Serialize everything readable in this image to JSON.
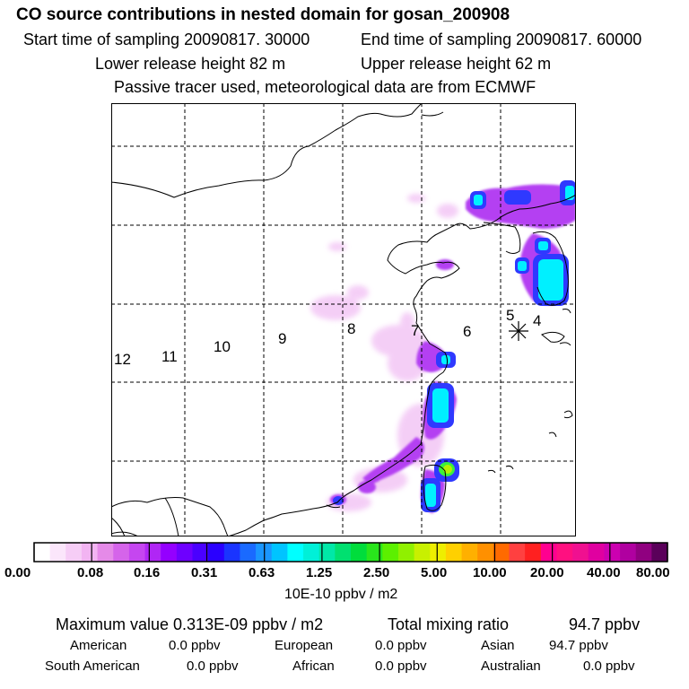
{
  "header": {
    "title": "CO  source contributions in nested domain for gosan_200908",
    "start_time": "Start time of sampling 20090817. 30000",
    "end_time": "End time of sampling 20090817. 60000",
    "lower_height": "Lower release height   82 m",
    "upper_height": "Upper release height   62 m",
    "note": "Passive tracer used, meteorological data are from ECMWF"
  },
  "map": {
    "contour_labels": [
      "12",
      "11",
      "10",
      "9",
      "8",
      "7",
      "6",
      "5",
      "4"
    ],
    "receptor_marker": "receptor-star"
  },
  "colorbar": {
    "tick_labels": [
      "0.00",
      "0.08",
      "0.16",
      "0.31",
      "0.63",
      "1.25",
      "2.50",
      "5.00",
      "10.00",
      "20.00",
      "40.00",
      "80.00"
    ],
    "unit_label": "10E-10 ppbv / m2",
    "colors": [
      "#ffffff",
      "#fbe6fb",
      "#f6cdf6",
      "#f2b4f2",
      "#e58ae8",
      "#d564ea",
      "#c546f0",
      "#b026f5",
      "#9400ff",
      "#6e00ff",
      "#4a00ff",
      "#2a00ff",
      "#1a34ff",
      "#1a6aff",
      "#1a96ff",
      "#00c4ff",
      "#00ffff",
      "#00f0d8",
      "#00e8a8",
      "#00e070",
      "#00dd3c",
      "#29e61c",
      "#5cf000",
      "#90f000",
      "#c8f000",
      "#eeee00",
      "#ffd000",
      "#ffb000",
      "#ff9000",
      "#ff6a00",
      "#ff4040",
      "#ff2020",
      "#ff0090",
      "#ff1080",
      "#f01090",
      "#e000a0",
      "#cc00b0",
      "#b000a0",
      "#900080",
      "#5a005a"
    ]
  },
  "summary": {
    "max_label": "Maximum value  0.313E-09 ppbv / m2",
    "total_label": "Total mixing ratio",
    "total_value": "94.7 ppbv",
    "american_label": "American",
    "american_value": "0.0 ppbv",
    "european_label": "European",
    "european_value": "0.0 ppbv",
    "asian_label": "Asian",
    "asian_value": "94.7 ppbv",
    "south_american_label": "South American",
    "south_american_value": "0.0 ppbv",
    "african_label": "African",
    "african_value": "0.0 ppbv",
    "australian_label": "Australian",
    "australian_value": "0.0 ppbv"
  }
}
